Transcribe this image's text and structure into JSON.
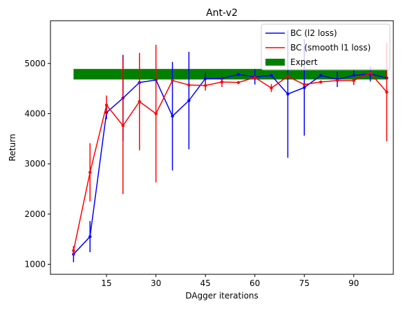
{
  "chart_data": {
    "type": "line",
    "title": "Ant-v2",
    "xlabel": "DAgger iterations",
    "ylabel": "Return",
    "xlim": [
      -2,
      102
    ],
    "ylim": [
      800,
      5850
    ],
    "xticks": [
      15,
      30,
      45,
      60,
      75,
      90
    ],
    "yticks": [
      1000,
      2000,
      3000,
      4000,
      5000
    ],
    "grid": false,
    "legend_position": "top-right",
    "series": [
      {
        "name": "BC (l2 loss)",
        "color": "#0000ff",
        "x": [
          5,
          10,
          15,
          20,
          25,
          30,
          35,
          40,
          45,
          50,
          55,
          60,
          65,
          70,
          75,
          80,
          85,
          90,
          95,
          100
        ],
        "y": [
          1200,
          1550,
          4020,
          4310,
          4620,
          4670,
          3950,
          4260,
          4700,
          4700,
          4780,
          4730,
          4760,
          4390,
          4520,
          4760,
          4680,
          4760,
          4790,
          4710
        ],
        "err": [
          160,
          310,
          130,
          860,
          0,
          0,
          1080,
          970,
          120,
          40,
          30,
          150,
          0,
          1270,
          960,
          0,
          150,
          120,
          150,
          0
        ]
      },
      {
        "name": "BC (smooth l1 loss)",
        "color": "#ff0000",
        "x": [
          5,
          10,
          15,
          20,
          25,
          30,
          35,
          40,
          45,
          50,
          55,
          60,
          65,
          70,
          75,
          80,
          85,
          90,
          95,
          100
        ],
        "y": [
          1270,
          2830,
          4170,
          3760,
          4240,
          4000,
          4660,
          4570,
          4560,
          4630,
          4620,
          4720,
          4510,
          4740,
          4580,
          4630,
          4660,
          4660,
          4810,
          4430
        ],
        "err": [
          90,
          580,
          190,
          1360,
          970,
          1370,
          0,
          0,
          100,
          100,
          0,
          0,
          80,
          0,
          0,
          0,
          0,
          90,
          0,
          980
        ]
      }
    ],
    "bands": [
      {
        "name": "Expert",
        "color": "#008000",
        "x_range": [
          5,
          100
        ],
        "y_range": [
          4680,
          4890
        ]
      }
    ]
  }
}
